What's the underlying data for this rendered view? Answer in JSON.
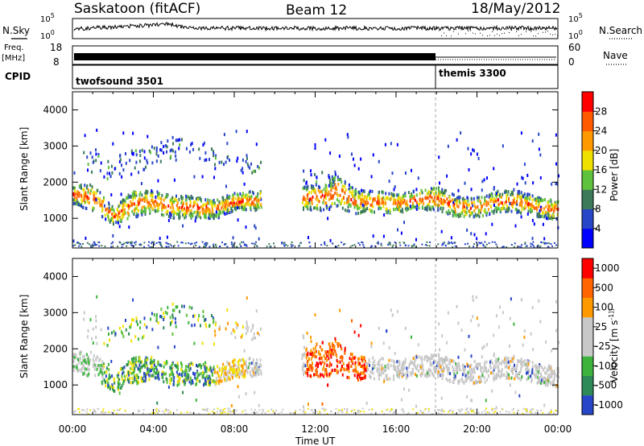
{
  "header": {
    "title": "Saskatoon (fitACF)",
    "beam": "Beam 12",
    "date": "18/May/2012"
  },
  "panels": {
    "nsky": {
      "label": "N.Sky",
      "right_label": "N.Search",
      "left_ticks": [
        "10^5",
        "10^0"
      ],
      "right_ticks": [
        "10^5",
        "10^0"
      ]
    },
    "freq": {
      "label_top": "Freq.",
      "label_unit": "[MHz]",
      "right_label": "Nave",
      "left_ticks": [
        "18",
        "8"
      ],
      "right_ticks": [
        "60",
        "0"
      ]
    },
    "cpid": {
      "label": "CPID",
      "segments": [
        {
          "name": "twofsound 3501",
          "start_h": 0,
          "end_h": 18
        },
        {
          "name": "themis 3300",
          "start_h": 18,
          "end_h": 24
        }
      ]
    }
  },
  "chart_data": [
    {
      "type": "heatmap",
      "title": "",
      "xlabel": "Time UT",
      "ylabel": "Slant Range [km]",
      "xlim_hours": [
        0,
        24
      ],
      "ylim": [
        180,
        4500
      ],
      "x_ticks": [
        "00:00",
        "04:00",
        "08:00",
        "12:00",
        "16:00",
        "20:00",
        "00:00"
      ],
      "y_ticks": [
        1000,
        2000,
        3000,
        4000
      ],
      "colorbar": {
        "label": "Power [dB]",
        "ticks": [
          "4",
          "8",
          "12",
          "16",
          "20",
          "24",
          "28"
        ],
        "colors": [
          "#0000ff",
          "#2846c8",
          "#3c7a5a",
          "#5fc23c",
          "#f0e000",
          "#ff9900",
          "#ff5a00",
          "#ff0000"
        ]
      }
    },
    {
      "type": "heatmap",
      "title": "",
      "xlabel": "Time UT",
      "ylabel": "Slant Range [km]",
      "xlim_hours": [
        0,
        24
      ],
      "ylim": [
        180,
        4500
      ],
      "x_ticks": [
        "00:00",
        "04:00",
        "08:00",
        "12:00",
        "16:00",
        "20:00",
        "00:00"
      ],
      "y_ticks": [
        1000,
        2000,
        3000,
        4000
      ],
      "colorbar": {
        "label": "Velocity [m s^-1]",
        "ticks": [
          "1000",
          "500",
          "100",
          "25",
          "-25",
          "-100",
          "-500",
          "-1000"
        ],
        "colors": [
          "#2846c8",
          "#2e8b57",
          "#3cb43c",
          "#c8c8c8",
          "#c8c8c8",
          "#ff9900",
          "#ff6600",
          "#ff0000"
        ]
      }
    }
  ],
  "xaxis": {
    "label": "Time UT",
    "ticks": [
      "00:00",
      "04:00",
      "08:00",
      "12:00",
      "16:00",
      "20:00",
      "00:00"
    ]
  }
}
